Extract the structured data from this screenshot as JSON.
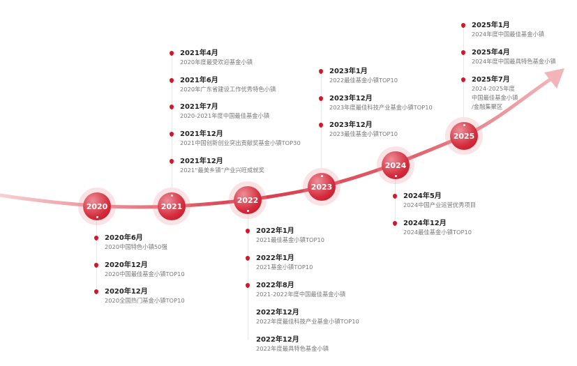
{
  "colors": {
    "accent": "#d42c3c",
    "halo": "#f8d9dc",
    "arrow": "#f2b4b8"
  },
  "years": [
    {
      "label": "2020",
      "events": [
        {
          "date": "2020年6月",
          "desc": "2020中国特色小镇50强",
          "bullet": true
        },
        {
          "date": "2020年12月",
          "desc": "2020中国最佳基金小镇TOP10",
          "bullet": true
        },
        {
          "date": "2020年12月",
          "desc": "2020全国热门基金小镇TOP10",
          "bullet": true
        }
      ]
    },
    {
      "label": "2021",
      "events": [
        {
          "date": "2021年4月",
          "desc": "2020年度最受欢迎基金小镇",
          "bullet": true
        },
        {
          "date": "2021年6月",
          "desc": "2020年广东省建设工作优秀特色小镇",
          "bullet": true
        },
        {
          "date": "2021年7月",
          "desc": "2020-2021年度中国最佳基金小镇",
          "bullet": true
        },
        {
          "date": "2021年12月",
          "desc": "2021中国创新创业突出贡献奖基金小镇TOP30",
          "bullet": true
        },
        {
          "date": "2021年12月",
          "desc": "2021“最美乡镇”产业兴旺成就奖",
          "bullet": true
        }
      ]
    },
    {
      "label": "2022",
      "events": [
        {
          "date": "2022年1月",
          "desc": "2021最佳基金小镇TOP10",
          "bullet": true
        },
        {
          "date": "2022年1月",
          "desc": "2021基金小镇TOP10",
          "bullet": true
        },
        {
          "date": "2022年8月",
          "desc": "2021-2022年度中国最佳基金小镇",
          "bullet": true
        },
        {
          "date": "2022年12月",
          "desc": "2022年度最佳科技产业基金小镇TOP10",
          "bullet": false
        },
        {
          "date": "2022年12月",
          "desc": "2022年度最具特色基金小镇",
          "bullet": false
        }
      ]
    },
    {
      "label": "2023",
      "events": [
        {
          "date": "2023年1月",
          "desc": "2022最佳基金小镇TOP10",
          "bullet": true
        },
        {
          "date": "2023年12月",
          "desc": "2023年度最佳科技产业基金小镇TOP10",
          "bullet": true
        },
        {
          "date": "2023年12月",
          "desc": "2023最佳基金小镇TOP10",
          "bullet": true
        }
      ]
    },
    {
      "label": "2024",
      "events": [
        {
          "date": "2024年5月",
          "desc": "2024中国产业运营优秀项目",
          "bullet": true
        },
        {
          "date": "2024年12月",
          "desc": "2024最佳基金小镇TOP10",
          "bullet": true
        }
      ]
    },
    {
      "label": "2025",
      "events": [
        {
          "date": "2025年1月",
          "desc": "2024年度中国最佳基金小镇",
          "bullet": true
        },
        {
          "date": "2025年4月",
          "desc": "2024年度中国最具特色基金小镇",
          "bullet": true
        },
        {
          "date": "2025年7月",
          "desc": "2024-2025年度\n中国最佳基金小镇\n/金融集聚区",
          "bullet": true
        }
      ]
    }
  ]
}
